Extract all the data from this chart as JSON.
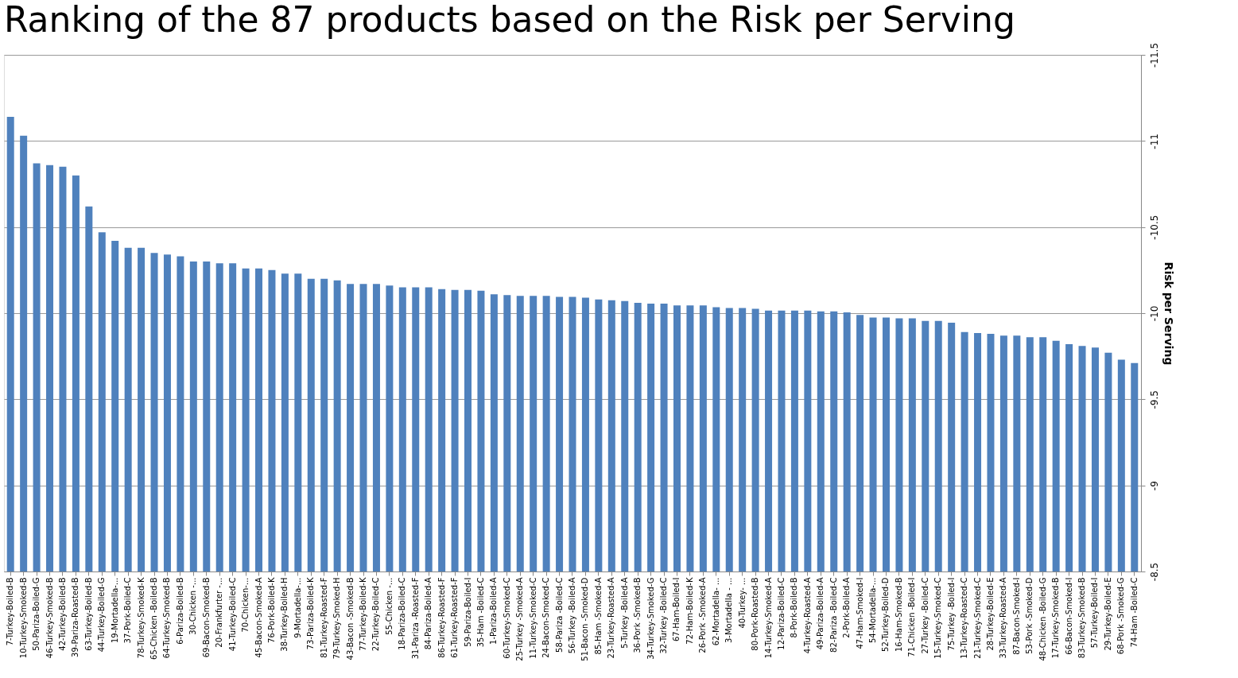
{
  "chart_data": {
    "type": "bar",
    "title": "Ranking of the 87 products based on the Risk per Serving",
    "ylabel": "Risk per Serving",
    "categories": [
      "7-Turkey-Boiled-B",
      "10-Turkey-Smoked-B",
      "50-Pariza-Boiled-G",
      "46-Turkey-Smoked-B",
      "42-Turkey-Boiled-B",
      "39-Pariza-Roasted-B",
      "63-Turkey-Boiled-B",
      "44-Turkey-Boiled-G",
      "19-Mortadella-...",
      "37-Pork-Boiled-C",
      "78-Turkey-Smoked-K",
      "65-Chicken -Boiled-B",
      "64-Turkey-Smoked-B",
      "6-Pariza-Boiled-B",
      "30-Chicken -...",
      "69-Bacon-Smoked-B",
      "20-Frankfurter -...",
      "41-Turkey-Boiled-C",
      "70-Chicken-...",
      "45-Bacon-Smoked-A",
      "76-Pork-Boiled-K",
      "38-Turkey-Boiled-H",
      "9-Mortadella-...",
      "73-Pariza-Boiled-K",
      "81-Turkey-Roasted-F",
      "79-Turkey-Smoked-H",
      "43-Bacon -Smoked-B",
      "77-Turkey-Boiled-K",
      "22-Turkey-Boiled-C",
      "55-Chicken -...",
      "18-Pariza-Boiled-C",
      "31-Pariza -Roasted-F",
      "84-Pariza-Boiled-A",
      "86-Turkey-Roasted-F",
      "61-Turkey-Roasted-F",
      "59-Pariza-Boiled-I",
      "35-Ham -Boiled-C",
      "1-Pariza-Boiled-A",
      "60-Turkey-Smoked-C",
      "25-Turkey -Smoked-A",
      "11-Turkey-Smoked-C",
      "24-Bacon-Smoked-C",
      "58-Pariza -Boiled-C",
      "56-Turkey -Boiled-A",
      "51-Bacon -Smoked-D",
      "85-Ham -Smoked-A",
      "23-Turkey-Roasted-A",
      "5-Turkey -Boiled-A",
      "36-Pork -Smoked-B",
      "34-Turkey-Smoked-G",
      "32-Turkey -Boiled-C",
      "67-Ham-Boiled-I",
      "72-Ham-Boiled-K",
      "26-Pork -Smoked-A",
      "62-Mortadella- ...",
      "3-Mortadella - ...",
      "40-Turkey- ...",
      "80-Pork-Roasted-B",
      "14-Turkey-Smoked-A",
      "12-Pariza-Boiled-C",
      "8-Pork-Boiled-B",
      "4-Turkey-Roasted-A",
      "49-Pariza-Boiled-A",
      "82-Pariza -Boiled-C",
      "2-Pork-Boiled-A",
      "47-Ham-Smoked-I",
      "54-Mortadella-...",
      "52-Turkey-Boiled-D",
      "16-Ham-Smoked-B",
      "71-Chicken -Boiled-I",
      "27-Turkey -Boiled-C",
      "15-Turkey-Smoked-C",
      "75-Turkey -Boiled-I",
      "13-Turkey-Roasted-C",
      "21-Turkey-Smoked-C",
      "28-Turkey-Boiled-E",
      "33-Turkey-Roasted-A",
      "87-Bacon-Smoked-I",
      "53-Pork -Smoked-D",
      "48-Chicken -Boiled-G",
      "17-Turkey-Smoked-B",
      "66-Bacon-Smoked-I",
      "83-Turkey-Smoked-B",
      "57-Turkey-Boiled-I",
      "29-Turkey-Boiled-E",
      "68-Pork -Smoked-G",
      "74-Ham -Boiled-C"
    ],
    "values": [
      -11.14,
      -11.03,
      -10.87,
      -10.86,
      -10.85,
      -10.8,
      -10.62,
      -10.47,
      -10.42,
      -10.38,
      -10.38,
      -10.35,
      -10.34,
      -10.33,
      -10.3,
      -10.3,
      -10.29,
      -10.29,
      -10.26,
      -10.26,
      -10.25,
      -10.23,
      -10.23,
      -10.2,
      -10.2,
      -10.19,
      -10.17,
      -10.17,
      -10.17,
      -10.16,
      -10.15,
      -10.15,
      -10.15,
      -10.14,
      -10.135,
      -10.135,
      -10.13,
      -10.11,
      -10.105,
      -10.1,
      -10.1,
      -10.1,
      -10.095,
      -10.095,
      -10.09,
      -10.08,
      -10.075,
      -10.07,
      -10.06,
      -10.055,
      -10.055,
      -10.045,
      -10.045,
      -10.045,
      -10.035,
      -10.03,
      -10.03,
      -10.025,
      -10.015,
      -10.015,
      -10.015,
      -10.015,
      -10.01,
      -10.01,
      -10.005,
      -9.99,
      -9.975,
      -9.975,
      -9.97,
      -9.97,
      -9.955,
      -9.955,
      -9.945,
      -9.89,
      -9.885,
      -9.88,
      -9.87,
      -9.87,
      -9.86,
      -9.86,
      -9.84,
      -9.82,
      -9.81,
      -9.8,
      -9.77,
      -9.73,
      -9.71
    ],
    "color": "#4f81bd",
    "ylim": [
      -8.5,
      -11.5
    ],
    "yticks": [
      -8.5,
      -9,
      -9.5,
      -10,
      -10.5,
      -11,
      -11.5
    ],
    "grid": "y"
  }
}
